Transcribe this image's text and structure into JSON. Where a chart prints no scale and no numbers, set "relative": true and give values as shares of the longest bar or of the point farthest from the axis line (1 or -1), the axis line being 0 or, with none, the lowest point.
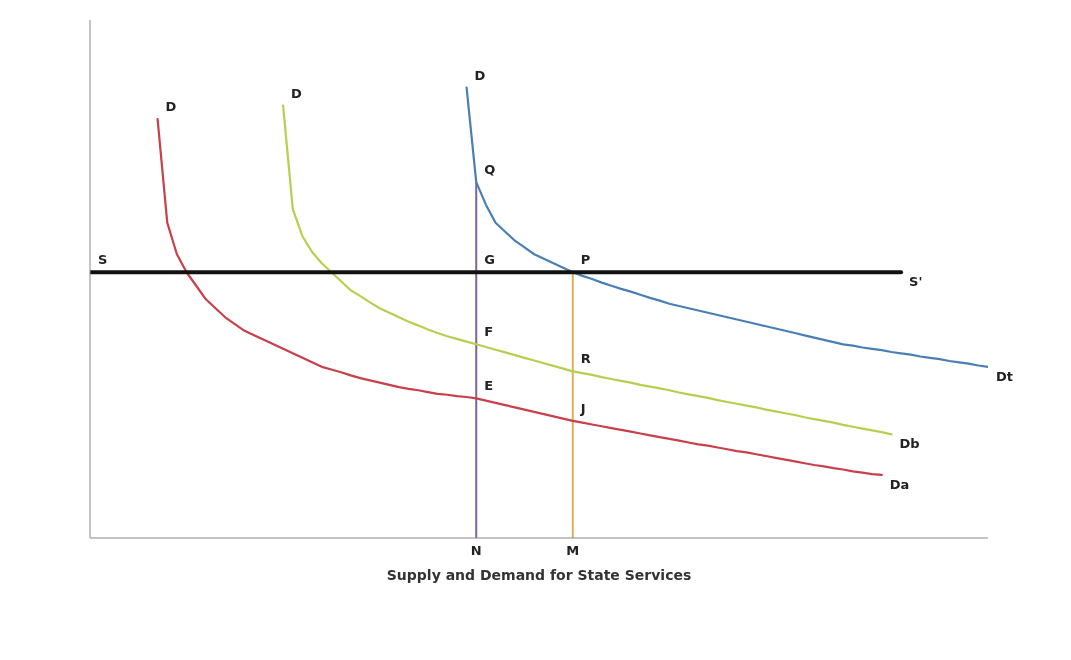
{
  "chart_data": {
    "type": "line",
    "relative": true,
    "xlabel": "Supply and Demand for State Services",
    "categories": [
      null,
      null,
      null,
      null,
      null,
      null,
      null,
      null,
      null,
      null,
      null,
      null,
      null,
      null,
      null,
      null,
      null,
      null,
      null,
      null,
      null,
      null,
      null,
      null,
      null,
      null,
      null,
      null,
      null,
      null,
      null,
      null,
      null,
      null,
      null,
      null,
      null,
      null,
      null,
      null,
      "N",
      null,
      null,
      null,
      null,
      null,
      null,
      null,
      null,
      null,
      "M",
      null,
      null,
      null,
      null,
      null,
      null,
      null,
      null,
      null,
      null,
      null,
      null,
      null,
      null,
      null,
      null,
      null,
      null,
      null,
      null,
      null,
      null,
      null,
      null,
      null,
      null,
      null,
      null,
      null,
      null,
      null,
      null,
      null,
      null,
      null,
      null,
      null,
      null,
      null,
      null,
      null,
      null,
      null
    ],
    "tick_labels": "x",
    "grid": false,
    "legend": false,
    "marker": "none",
    "line_style": "solid",
    "series": [
      {
        "name": "Da",
        "color": "#c8404a",
        "values": [
          null,
          null,
          null,
          null,
          null,
          null,
          null,
          0.93,
          0.7,
          0.63,
          0.59,
          0.56,
          0.53,
          0.51,
          0.49,
          0.475,
          0.46,
          0.45,
          0.44,
          0.43,
          0.42,
          0.41,
          0.4,
          0.39,
          0.38,
          0.374,
          0.368,
          0.361,
          0.355,
          0.35,
          0.345,
          0.34,
          0.335,
          0.331,
          0.328,
          0.324,
          0.32,
          0.318,
          0.315,
          0.313,
          0.31,
          0.305,
          0.3,
          0.295,
          0.29,
          0.285,
          0.28,
          0.275,
          0.27,
          0.265,
          0.26,
          0.256,
          0.252,
          0.248,
          0.244,
          0.24,
          0.236,
          0.232,
          0.228,
          0.224,
          0.22,
          0.216,
          0.212,
          0.208,
          0.205,
          0.201,
          0.197,
          0.193,
          0.19,
          0.186,
          0.182,
          0.178,
          0.174,
          0.17,
          0.166,
          0.162,
          0.159,
          0.155,
          0.152,
          0.148,
          0.145,
          0.142,
          0.14,
          null,
          null,
          null,
          null,
          null,
          null,
          null,
          null,
          null,
          null,
          null
        ]
      },
      {
        "name": "Db",
        "color": "#b5cf50",
        "values": [
          null,
          null,
          null,
          null,
          null,
          null,
          null,
          null,
          null,
          null,
          null,
          null,
          null,
          null,
          null,
          null,
          null,
          null,
          null,
          null,
          0.96,
          0.73,
          0.67,
          0.635,
          0.61,
          0.59,
          0.57,
          0.55,
          0.537,
          0.523,
          0.51,
          0.5,
          0.49,
          0.48,
          0.472,
          0.463,
          0.455,
          0.448,
          0.442,
          0.436,
          0.43,
          0.424,
          0.418,
          0.412,
          0.406,
          0.4,
          0.394,
          0.388,
          0.382,
          0.376,
          0.37,
          0.366,
          0.362,
          0.357,
          0.353,
          0.349,
          0.345,
          0.34,
          0.336,
          0.332,
          0.328,
          0.323,
          0.319,
          0.315,
          0.311,
          0.306,
          0.302,
          0.298,
          0.294,
          0.29,
          0.285,
          0.281,
          0.277,
          0.273,
          0.268,
          0.264,
          0.26,
          0.256,
          0.251,
          0.247,
          0.243,
          0.239,
          0.235,
          0.23,
          null,
          null,
          null,
          null,
          null,
          null,
          null,
          null,
          null,
          null
        ]
      },
      {
        "name": "Dt",
        "color": "#4a7fb5",
        "values": [
          null,
          null,
          null,
          null,
          null,
          null,
          null,
          null,
          null,
          null,
          null,
          null,
          null,
          null,
          null,
          null,
          null,
          null,
          null,
          null,
          null,
          null,
          null,
          null,
          null,
          null,
          null,
          null,
          null,
          null,
          null,
          null,
          null,
          null,
          null,
          null,
          null,
          null,
          null,
          1.0,
          0.79,
          0.74,
          0.7,
          0.68,
          0.66,
          0.645,
          0.63,
          0.62,
          0.61,
          0.6,
          0.59,
          0.582,
          0.575,
          0.567,
          0.56,
          0.553,
          0.547,
          0.54,
          0.533,
          0.527,
          0.52,
          0.515,
          0.51,
          0.505,
          0.5,
          0.495,
          0.49,
          0.485,
          0.48,
          0.475,
          0.47,
          0.465,
          0.46,
          0.455,
          0.45,
          0.445,
          0.44,
          0.435,
          0.43,
          0.427,
          0.423,
          0.42,
          0.417,
          0.413,
          0.41,
          0.407,
          0.403,
          0.4,
          0.397,
          0.393,
          0.39,
          0.387,
          0.383,
          0.38
        ]
      },
      {
        "name": "S'",
        "color": "#111111",
        "values": [
          0.59,
          0.59,
          0.59,
          0.59,
          0.59,
          0.59,
          0.59,
          0.59,
          0.59,
          0.59,
          0.59,
          0.59,
          0.59,
          0.59,
          0.59,
          0.59,
          0.59,
          0.59,
          0.59,
          0.59,
          0.59,
          0.59,
          0.59,
          0.59,
          0.59,
          0.59,
          0.59,
          0.59,
          0.59,
          0.59,
          0.59,
          0.59,
          0.59,
          0.59,
          0.59,
          0.59,
          0.59,
          0.59,
          0.59,
          0.59,
          0.59,
          0.59,
          0.59,
          0.59,
          0.59,
          0.59,
          0.59,
          0.59,
          0.59,
          0.59,
          0.59,
          0.59,
          0.59,
          0.59,
          0.59,
          0.59,
          0.59,
          0.59,
          0.59,
          0.59,
          0.59,
          0.59,
          0.59,
          0.59,
          0.59,
          0.59,
          0.59,
          0.59,
          0.59,
          0.59,
          0.59,
          0.59,
          0.59,
          0.59,
          0.59,
          0.59,
          0.59,
          0.59,
          0.59,
          0.59,
          0.59,
          0.59,
          0.59,
          0.59,
          0.59,
          null,
          null,
          null,
          null,
          null,
          null,
          null,
          null,
          null
        ]
      }
    ],
    "ref_lines": [
      {
        "axis": "x",
        "value": "N",
        "color": "#7a64a0"
      },
      {
        "axis": "x",
        "value": "M",
        "color": "#e0b050"
      }
    ],
    "annotations": [
      "D",
      "D",
      "D",
      {
        "text": "S",
        "y": 0.59
      },
      {
        "text": "Q",
        "x": "N",
        "y": 0.79
      },
      {
        "text": "P",
        "x": "M",
        "y": 0.59
      },
      {
        "text": "G",
        "x": "N",
        "y": 0.59
      },
      {
        "text": "F",
        "x": "N",
        "y": 0.43
      },
      {
        "text": "R",
        "x": "M",
        "y": 0.37
      },
      {
        "text": "E",
        "x": "N",
        "y": 0.31
      },
      {
        "text": "J",
        "x": "M",
        "y": 0.26
      }
    ]
  }
}
